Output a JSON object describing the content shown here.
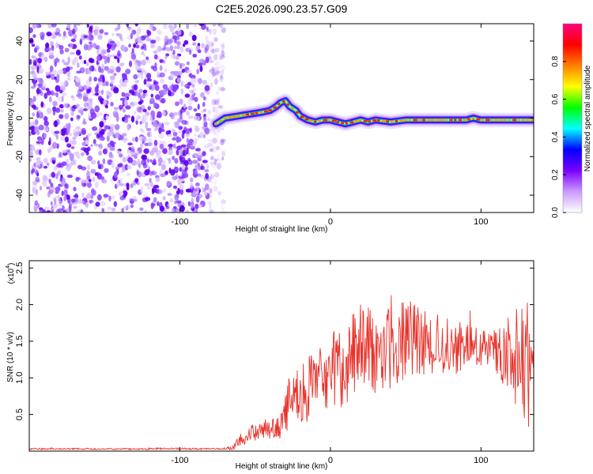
{
  "figure_title": "C2E5.2026.090.23.57.G09",
  "chart_data": [
    {
      "type": "heatmap",
      "title": "C2E5.2026.090.23.57.G09",
      "xlabel": "Height of straight line (km)",
      "ylabel": "Frequency (Hz)",
      "xlim": [
        -200,
        135
      ],
      "ylim": [
        -49,
        49
      ],
      "x_ticks": [
        -100,
        0,
        100
      ],
      "y_ticks": [
        40,
        20,
        0,
        -20,
        -40
      ],
      "noise_region_x": [
        -200,
        -75
      ],
      "ridge": {
        "x": [
          -76,
          -70,
          -62,
          -54,
          -46,
          -40,
          -36,
          -33,
          -30,
          -27,
          -23,
          -20,
          -15,
          -10,
          -5,
          0,
          5,
          10,
          15,
          20,
          25,
          30,
          40,
          50,
          60,
          70,
          80,
          90,
          95,
          100,
          110,
          120,
          125,
          135
        ],
        "y": [
          -3,
          0,
          1,
          2,
          3,
          4,
          6,
          8,
          9,
          6,
          4,
          1,
          -1,
          -2,
          -1,
          -1,
          -2,
          -3,
          -2,
          -1,
          -2,
          -1,
          -2,
          -1,
          -1,
          -1,
          -1,
          -1,
          0,
          -1,
          -1,
          -1,
          -1,
          -1
        ]
      },
      "colorbar": {
        "label": "Normalized spectral amplitude",
        "ticks": [
          0.0,
          0.2,
          0.4,
          0.6,
          0.8
        ],
        "tick_labels": [
          "0.0",
          "0.2",
          "0.4",
          "0.6",
          "0.8"
        ],
        "range": [
          0,
          1
        ],
        "colors": [
          "#ffffff",
          "#cc99ff",
          "#7a00ff",
          "#0000ff",
          "#00ffff",
          "#00ff00",
          "#ffff00",
          "#ff7f00",
          "#ff0000",
          "#ff0080"
        ]
      }
    },
    {
      "type": "line",
      "title": "",
      "xlabel": "Height of straight line (km)",
      "ylabel": "SNR (10 * v/v)",
      "scale_label": "(x10",
      "scale_exponent": "4",
      "scale_suffix": ")",
      "xlim": [
        -200,
        135
      ],
      "ylim": [
        0,
        2.6
      ],
      "x_ticks": [
        -100,
        0,
        100
      ],
      "y_ticks": [
        0.5,
        1.0,
        1.5,
        2.0,
        2.5
      ],
      "y_tick_labels": [
        "0.5",
        "1.0",
        "1.5",
        "2.0",
        "2.5"
      ],
      "series": [
        {
          "name": "SNR",
          "color": "#e8322a",
          "envelope": {
            "x": [
              -200,
              -120,
              -110,
              -70,
              -64,
              -58,
              -50,
              -42,
              -36,
              -32,
              -30,
              -25,
              -20,
              -15,
              -10,
              -5,
              0,
              5,
              10,
              15,
              20,
              30,
              40,
              50,
              60,
              70,
              80,
              90,
              100,
              110,
              120,
              125,
              130,
              135
            ],
            "mean": [
              0.03,
              0.03,
              0.035,
              0.03,
              0.05,
              0.2,
              0.28,
              0.3,
              0.32,
              0.35,
              0.55,
              0.7,
              0.8,
              0.85,
              0.9,
              1.0,
              1.05,
              1.1,
              1.25,
              1.3,
              1.35,
              1.38,
              1.45,
              1.5,
              1.5,
              1.45,
              1.42,
              1.42,
              1.4,
              1.38,
              1.3,
              1.2,
              1.2,
              1.1
            ],
            "amp": [
              0.01,
              0.01,
              0.012,
              0.01,
              0.04,
              0.12,
              0.14,
              0.14,
              0.15,
              0.18,
              0.3,
              0.35,
              0.4,
              0.45,
              0.5,
              0.5,
              0.55,
              0.6,
              0.6,
              0.65,
              0.65,
              0.6,
              0.6,
              0.55,
              0.45,
              0.45,
              0.4,
              0.35,
              0.25,
              0.3,
              0.6,
              0.8,
              0.9,
              0.7
            ]
          }
        }
      ]
    }
  ]
}
